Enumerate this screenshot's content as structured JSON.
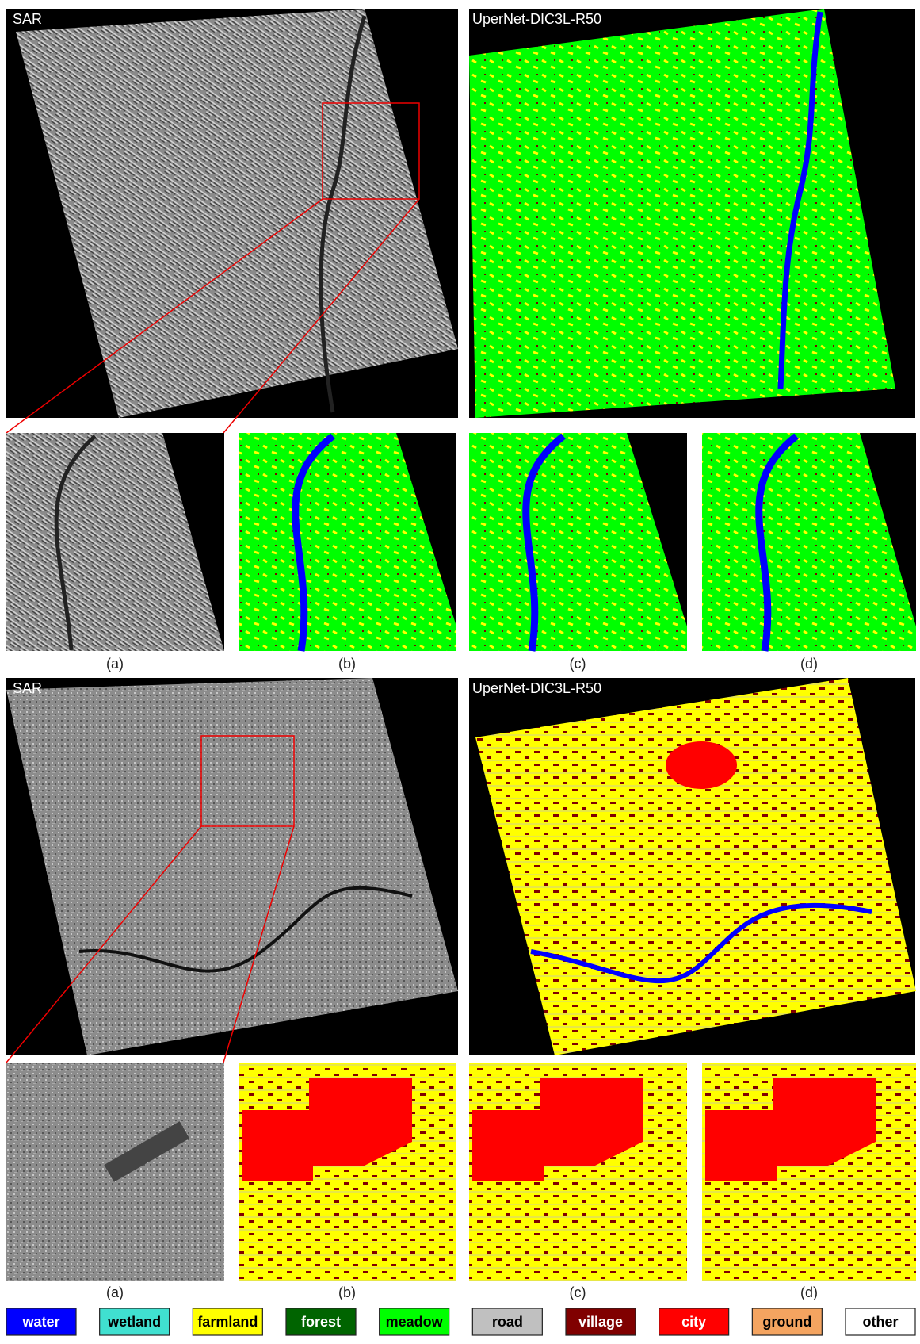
{
  "figure": {
    "block1": {
      "sar_title": "SAR",
      "seg_title": "UperNet-DIC3L-R50",
      "labels": [
        "(a)",
        "(b)",
        "(c)",
        "(d)"
      ]
    },
    "block2": {
      "sar_title": "SAR",
      "seg_title": "UperNet-DIC3L-R50",
      "labels": [
        "(a)",
        "(b)",
        "(c)",
        "(d)"
      ]
    },
    "legend": [
      {
        "name": "water",
        "color": "#0000ff"
      },
      {
        "name": "wetland",
        "color": "#40e0d0"
      },
      {
        "name": "farmland",
        "color": "#ffff00"
      },
      {
        "name": "forest",
        "color": "#006400"
      },
      {
        "name": "meadow",
        "color": "#00ff00"
      },
      {
        "name": "road",
        "color": "#c0c0c0"
      },
      {
        "name": "village",
        "color": "#800000"
      },
      {
        "name": "city",
        "color": "#ff0000"
      },
      {
        "name": "ground",
        "color": "#f4a460"
      },
      {
        "name": "other",
        "color": "#ffffff"
      }
    ]
  }
}
